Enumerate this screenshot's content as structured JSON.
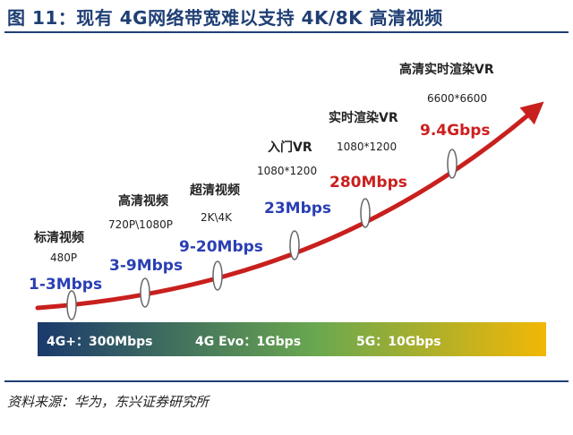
{
  "figure": {
    "title": "图 11：现有 4G网络带宽难以支持 4K/8K 高清视频",
    "source": "资料来源：华为，东兴证券研究所"
  },
  "stages": [
    {
      "name": "标清视频",
      "resolution": "480P",
      "rate": "1-3Mbps",
      "color": "#2a3fb4"
    },
    {
      "name": "高清视频",
      "resolution": "720P\\1080P",
      "rate": "3-9Mbps",
      "color": "#2a3fb4"
    },
    {
      "name": "超清视频",
      "resolution": "2K\\4K",
      "rate": "9-20Mbps",
      "color": "#2a3fb4"
    },
    {
      "name": "入门VR",
      "resolution": "1080*1200",
      "rate": "23Mbps",
      "color": "#2a3fb4"
    },
    {
      "name": "实时渲染VR",
      "resolution": "1080*1200",
      "rate": "280Mbps",
      "color": "#cc1f1f"
    },
    {
      "name": "高清实时渲染VR",
      "resolution": "6600*6600",
      "rate": "9.4Gbps",
      "color": "#cc1f1f"
    }
  ],
  "network_bands": [
    {
      "label": "4G+：300Mbps"
    },
    {
      "label": "4G Evo：1Gbps"
    },
    {
      "label": "5G：10Gbps"
    }
  ],
  "colors": {
    "curve": "#c8201e",
    "band_start": "#1a3a6c",
    "band_mid": "#6aa84f",
    "band_end": "#f2b705",
    "title": "#1f3f74"
  }
}
